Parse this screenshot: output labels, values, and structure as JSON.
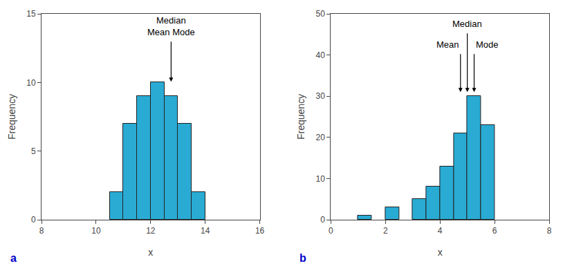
{
  "chart_data": [
    {
      "type": "bar",
      "x": [
        10.75,
        11.25,
        11.75,
        12.25,
        12.75,
        13.25,
        13.75
      ],
      "values": [
        2,
        7,
        9,
        10,
        9,
        7,
        2
      ],
      "color": "#29ABD4",
      "xlim": [
        8,
        16
      ],
      "ylim": [
        0,
        15
      ],
      "xticks": [
        8,
        10,
        12,
        14,
        16
      ],
      "yticks": [
        0,
        5,
        10,
        15
      ],
      "xlabel": "x",
      "ylabel": "Frequency",
      "grid": false,
      "annotations": [
        {
          "text": "Median\nMean Mode",
          "x": 12.75,
          "y": 13.2,
          "arrow_to": 10.05
        },
        {
          "text": "a",
          "color": "#0000cc"
        }
      ]
    },
    {
      "type": "bar",
      "x": [
        1.25,
        2.25,
        3.25,
        3.75,
        4.25,
        4.75,
        5.25,
        5.75
      ],
      "values": [
        1,
        3,
        5,
        8,
        13,
        21,
        30,
        23
      ],
      "color": "#29ABD4",
      "xlim": [
        0,
        8
      ],
      "ylim": [
        0,
        50
      ],
      "xticks": [
        0,
        2,
        4,
        6,
        8
      ],
      "yticks": [
        0,
        10,
        20,
        30,
        40,
        50
      ],
      "xlabel": "x",
      "ylabel": "Frequency",
      "grid": false,
      "annotations": [
        {
          "text": "Mean",
          "x": 4.75,
          "y": 41,
          "arrow_to": 31.0
        },
        {
          "text": "Median",
          "x": 5.0,
          "y": 46,
          "arrow_to": 31.0
        },
        {
          "text": "Mode",
          "x": 5.25,
          "y": 41,
          "arrow_to": 31.0
        },
        {
          "text": "b",
          "color": "#0000cc"
        }
      ]
    }
  ]
}
